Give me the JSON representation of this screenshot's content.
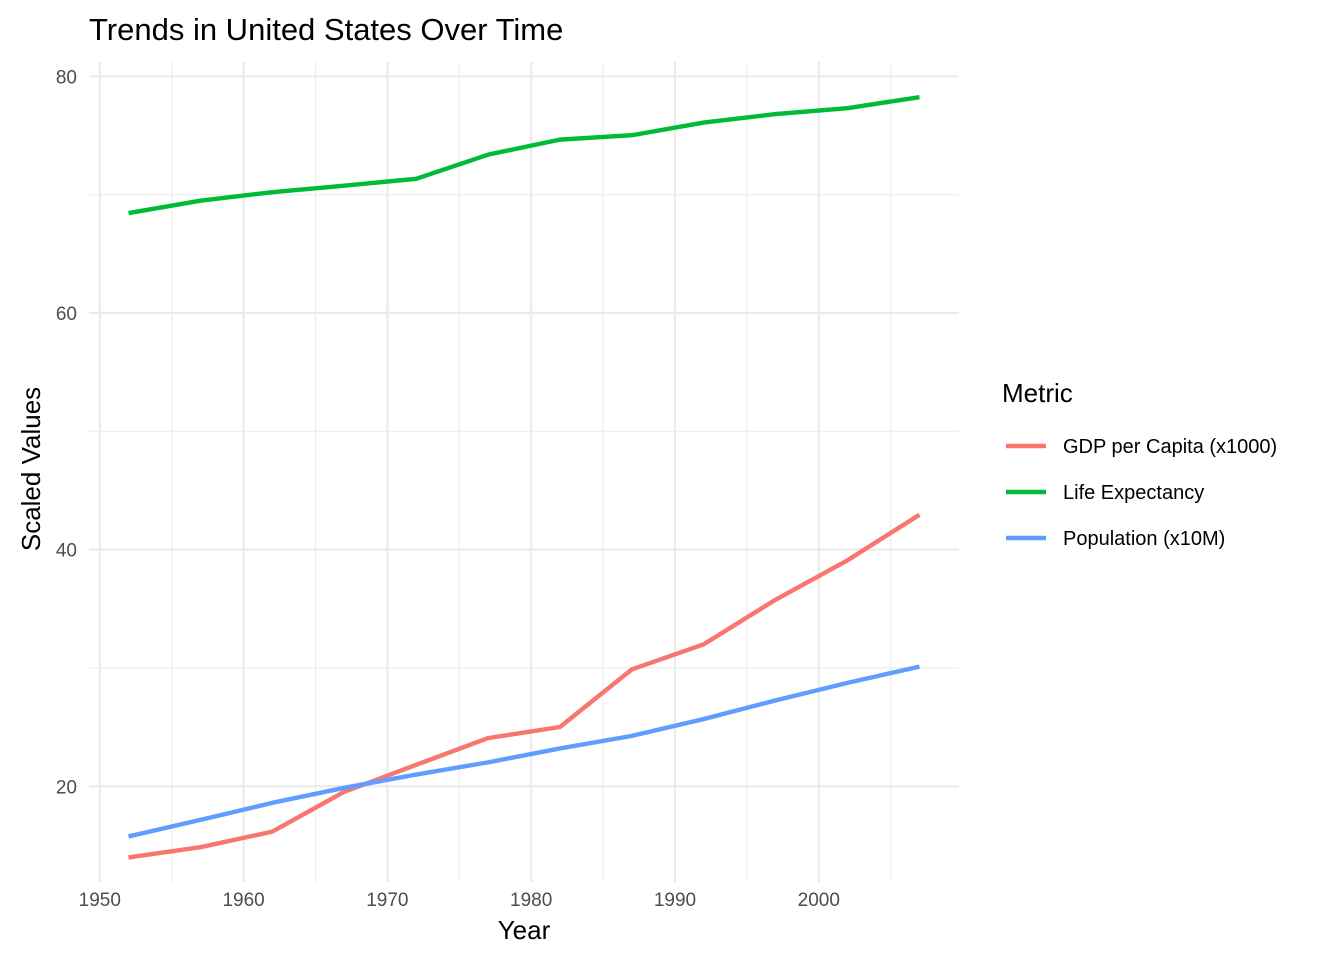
{
  "chart_data": {
    "type": "line",
    "title": "Trends in United States Over Time",
    "xlabel": "Year",
    "ylabel": "Scaled Values",
    "xlim": [
      1949.25,
      2009.75
    ],
    "ylim": [
      11.91,
      81.21
    ],
    "x_ticks": [
      1950,
      1960,
      1970,
      1980,
      1990,
      2000
    ],
    "x_minor_ticks": [
      1955,
      1965,
      1975,
      1985,
      1995,
      2005
    ],
    "y_ticks": [
      20,
      40,
      60,
      80
    ],
    "y_minor_ticks": [
      30,
      50,
      70
    ],
    "grid": true,
    "legend": {
      "title": "Metric",
      "position": "right"
    },
    "x": [
      1952,
      1957,
      1962,
      1967,
      1972,
      1977,
      1982,
      1987,
      1992,
      1997,
      2002,
      2007
    ],
    "series": [
      {
        "name": "GDP per Capita (x1000)",
        "color": "#F8766D",
        "values": [
          13.99,
          14.85,
          16.17,
          19.53,
          21.81,
          24.07,
          25.01,
          29.88,
          32.0,
          35.77,
          39.1,
          42.95
        ]
      },
      {
        "name": "Life Expectancy",
        "color": "#00BA38",
        "values": [
          68.44,
          69.49,
          70.21,
          70.76,
          71.34,
          73.38,
          74.65,
          75.02,
          76.09,
          76.81,
          77.31,
          78.24
        ]
      },
      {
        "name": "Population (x10M)",
        "color": "#619CFF",
        "values": [
          15.76,
          17.16,
          18.6,
          19.87,
          20.99,
          22.02,
          23.2,
          24.26,
          25.68,
          27.26,
          28.74,
          30.11
        ]
      }
    ]
  }
}
